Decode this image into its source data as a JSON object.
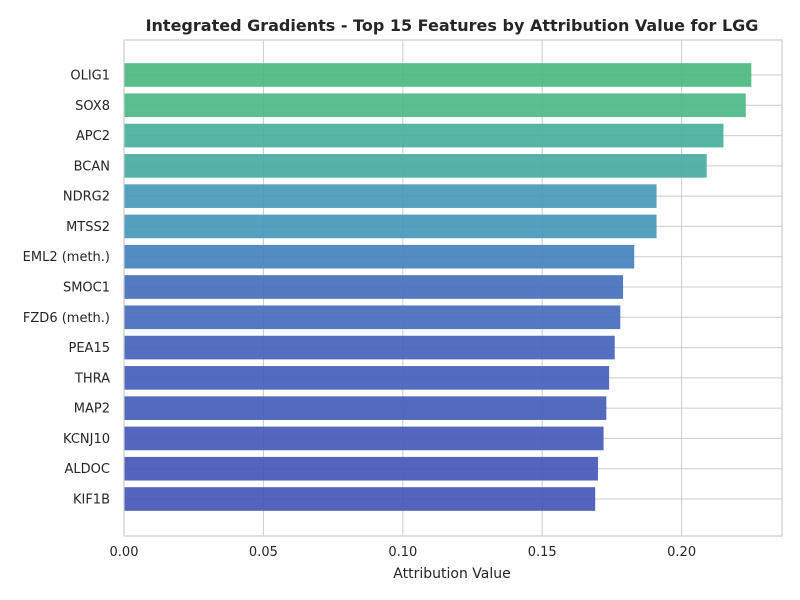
{
  "chart_data": {
    "type": "bar",
    "orientation": "horizontal",
    "title": "Integrated Gradients - Top 15 Features by Attribution Value for LGG",
    "xlabel": "Attribution Value",
    "ylabel": "",
    "xlim": [
      0.0,
      0.236
    ],
    "xticks": [
      0.0,
      0.05,
      0.1,
      0.15,
      0.2
    ],
    "xtick_labels": [
      "0.00",
      "0.05",
      "0.10",
      "0.15",
      "0.20"
    ],
    "grid": true,
    "categories": [
      "OLIG1",
      "SOX8",
      "APC2",
      "BCAN",
      "NDRG2",
      "MTSS2",
      "EML2 (meth.)",
      "SMOC1",
      "FZD6 (meth.)",
      "PEA15",
      "THRA",
      "MAP2",
      "KCNJ10",
      "ALDOC",
      "KIF1B"
    ],
    "values": [
      0.225,
      0.223,
      0.215,
      0.209,
      0.191,
      0.191,
      0.183,
      0.179,
      0.178,
      0.176,
      0.174,
      0.173,
      0.172,
      0.17,
      0.169
    ],
    "colors": [
      "#4bb87f",
      "#4bb887",
      "#47b09d",
      "#48ab9f",
      "#4799b9",
      "#4797ba",
      "#4482bd",
      "#456fbc",
      "#456cbd",
      "#4563ba",
      "#4460bb",
      "#455dba",
      "#4559b8",
      "#4557b8",
      "#4556b7"
    ]
  }
}
